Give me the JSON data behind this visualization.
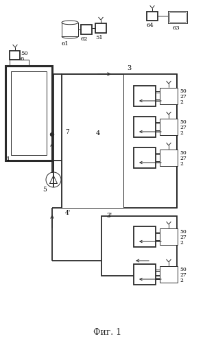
{
  "title": "Фиг. 1",
  "bg_color": "#ffffff",
  "line_color": "#2a2a2a",
  "fig_width": 3.15,
  "fig_height": 5.0,
  "dpi": 100
}
